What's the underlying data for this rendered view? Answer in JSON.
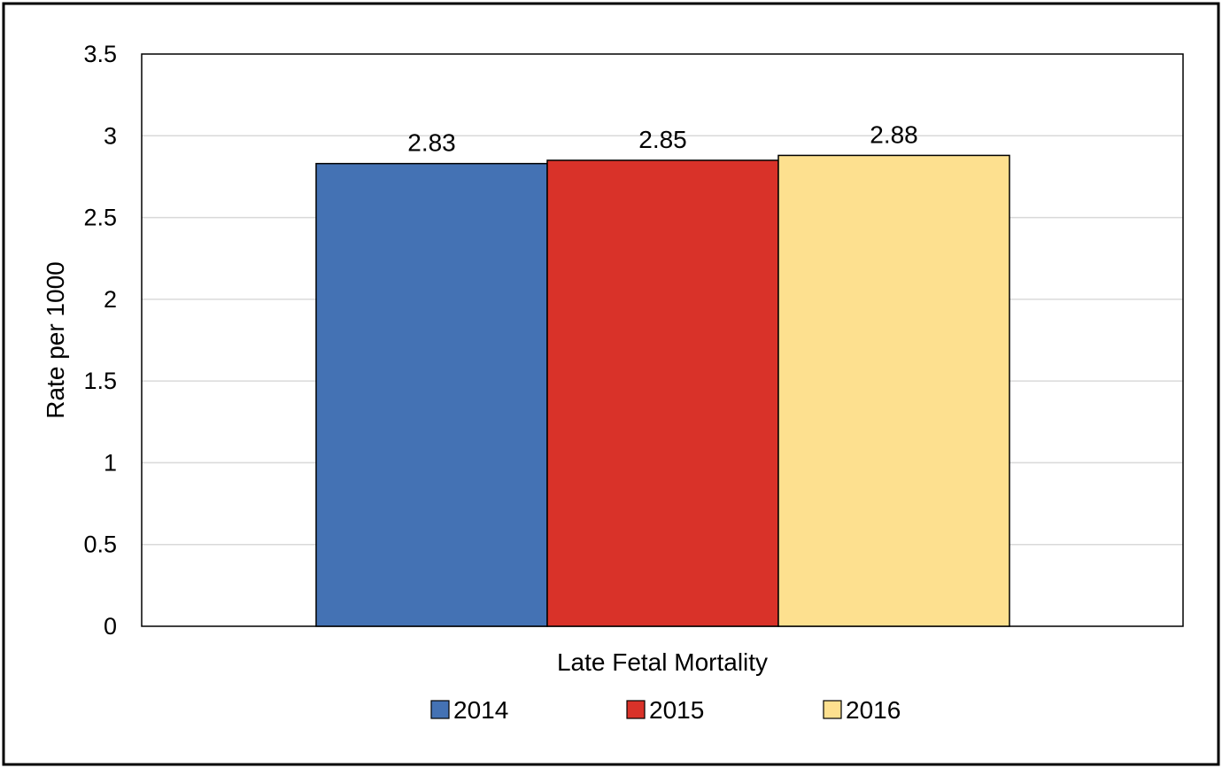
{
  "chart_data": {
    "type": "bar",
    "categories": [
      "Late Fetal Mortality"
    ],
    "series": [
      {
        "name": "2014",
        "values": [
          2.83
        ],
        "color": "#4472b4"
      },
      {
        "name": "2015",
        "values": [
          2.85
        ],
        "color": "#d93229"
      },
      {
        "name": "2016",
        "values": [
          2.88
        ],
        "color": "#fde08f"
      }
    ],
    "xlabel": "Late Fetal Mortality",
    "ylabel": "Rate per 1000",
    "ylim": [
      0,
      3.5
    ],
    "yticks": [
      "0",
      "0.5",
      "1",
      "1.5",
      "2",
      "2.5",
      "3",
      "3.5"
    ],
    "data_labels": [
      "2.83",
      "2.85",
      "2.88"
    ],
    "grid": true,
    "legend_position": "bottom"
  }
}
